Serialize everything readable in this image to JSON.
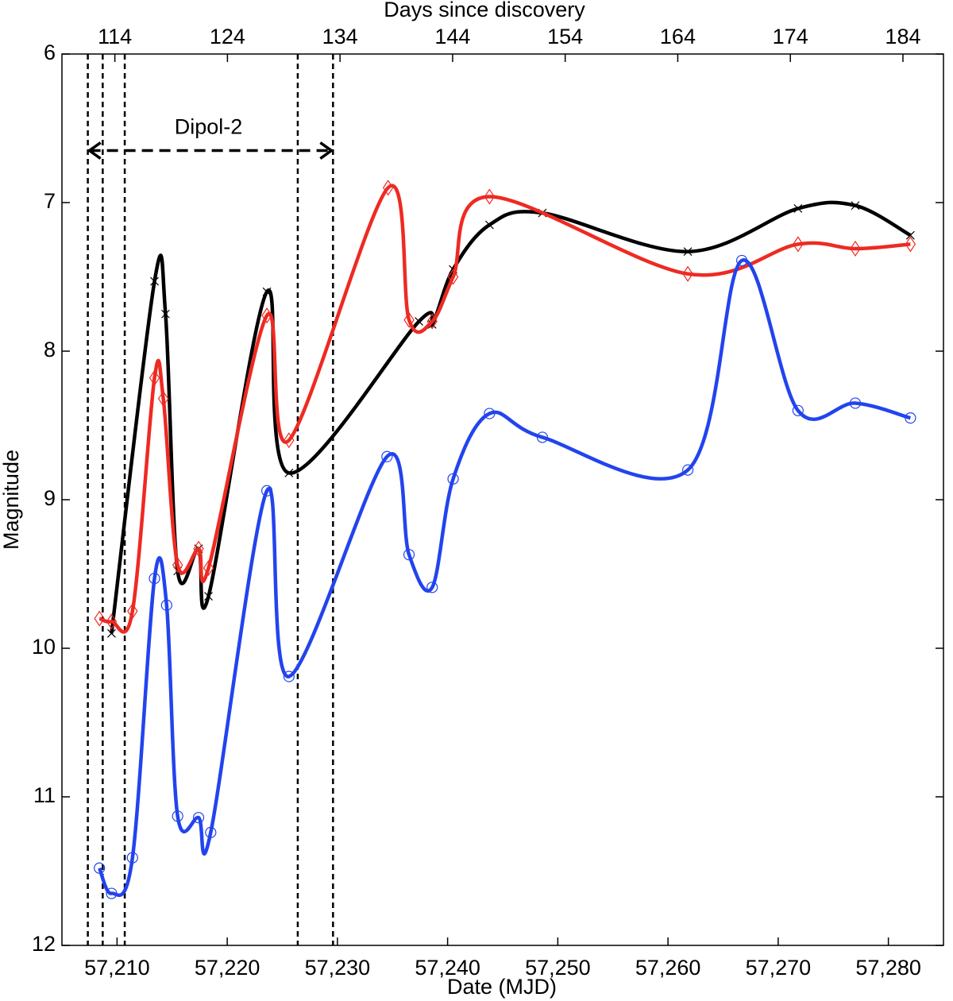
{
  "chart_data": {
    "type": "line",
    "xlabel": "Date (MJD)",
    "ylabel": "Magnitude",
    "x2label": "Days since discovery",
    "xlim": [
      57205,
      57285
    ],
    "ylim": [
      12,
      6
    ],
    "x2lim": [
      109.3,
      187.6
    ],
    "xticks": [
      {
        "value": 57210,
        "label": "57,210"
      },
      {
        "value": 57220,
        "label": "57,220"
      },
      {
        "value": 57230,
        "label": "57,230"
      },
      {
        "value": 57240,
        "label": "57,240"
      },
      {
        "value": 57250,
        "label": "57,250"
      },
      {
        "value": 57260,
        "label": "57,260"
      },
      {
        "value": 57270,
        "label": "57,270"
      },
      {
        "value": 57280,
        "label": "57,280"
      }
    ],
    "x2ticks": [
      114,
      124,
      134,
      144,
      154,
      164,
      174,
      184
    ],
    "yticks": [
      6,
      7,
      8,
      9,
      10,
      11,
      12
    ],
    "vlines": [
      57207.35,
      57208.7,
      57210.7,
      57226.4,
      57229.6
    ],
    "annotations": [
      {
        "text": "Dipol-2",
        "x": 57218.3,
        "y": 6.5
      }
    ],
    "arrows": [
      {
        "x1": 57207.35,
        "x2": 57229.6,
        "y": 6.65
      }
    ],
    "series": [
      {
        "color": "#000000",
        "marker": "x",
        "x": [
          57209.5,
          57213.4,
          57214.4,
          57215.5,
          57217.4,
          57218.3,
          57223.6,
          57225.6,
          57237.4,
          57238.6,
          57240.5,
          57243.8,
          57248.6,
          57261.8,
          57271.8,
          57277.0,
          57282.0
        ],
        "values": [
          9.9,
          7.53,
          7.75,
          9.48,
          9.33,
          9.65,
          7.6,
          8.82,
          7.8,
          7.82,
          7.45,
          7.15,
          7.07,
          7.33,
          7.04,
          7.02,
          7.22
        ]
      },
      {
        "color": "#ee2a22",
        "marker": "diamond",
        "x": [
          57208.4,
          57209.5,
          57211.4,
          57213.4,
          57214.2,
          57215.5,
          57217.4,
          57218.3,
          57223.6,
          57225.6,
          57234.6,
          57236.5,
          57238.6,
          57240.5,
          57243.8,
          57261.8,
          57271.8,
          57277.0,
          57282.0
        ],
        "values": [
          9.8,
          9.82,
          9.75,
          8.18,
          8.32,
          9.44,
          9.33,
          9.46,
          7.76,
          8.6,
          6.9,
          7.79,
          7.8,
          7.5,
          6.96,
          7.48,
          7.28,
          7.31,
          7.28
        ]
      },
      {
        "color": "#2244ee",
        "marker": "circle",
        "x": [
          57208.4,
          57209.5,
          57211.4,
          57213.4,
          57214.5,
          57215.5,
          57217.4,
          57218.5,
          57223.6,
          57225.6,
          57234.5,
          57236.5,
          57238.6,
          57240.5,
          57243.8,
          57248.6,
          57261.8,
          57266.7,
          57271.8,
          57277.0,
          57282.0
        ],
        "values": [
          11.48,
          11.65,
          11.41,
          9.53,
          9.71,
          11.13,
          11.14,
          11.24,
          8.94,
          10.19,
          8.71,
          9.37,
          9.59,
          8.86,
          8.42,
          8.58,
          8.8,
          7.39,
          8.4,
          8.35,
          8.45
        ]
      }
    ]
  }
}
